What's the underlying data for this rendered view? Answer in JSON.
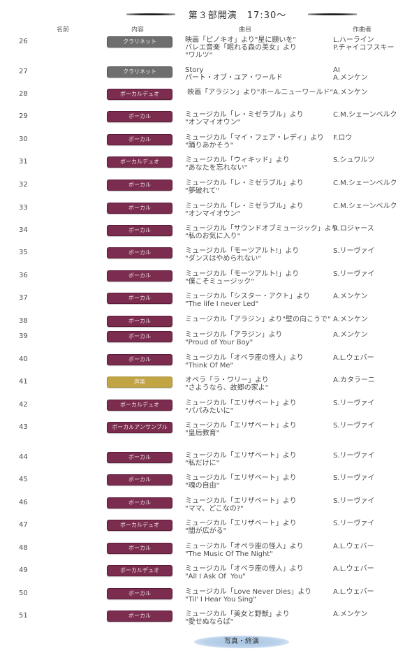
{
  "title": "第３部開演　17:30〜",
  "headers": {
    "name": "名前",
    "content": "内容",
    "song": "曲目",
    "composer": "作曲者"
  },
  "colors": {
    "vocal": "#7b2c4f",
    "clarinet": "#6e6e6e",
    "vocal_music": "#c1a545",
    "finale": "#b9d1ea"
  },
  "rows": [
    {
      "no": "26",
      "type": "クラリネット",
      "kind": "clar",
      "song": "映画「ピノキオ」より\"星に願いを\"\nバレエ音楽「眠れる森の美女」より\n\"ワルツ\"",
      "composer": "L.ハーライン\nP.チャイコフスキー"
    },
    {
      "no": "27",
      "type": "クラリネット",
      "kind": "clar",
      "song": "Story\nパート・オブ・ユア・ワールド",
      "composer": "AI\nA.メンケン"
    },
    {
      "no": "28",
      "type": "ボーカルデュオ",
      "kind": "vocal",
      "song": " 映画「アラジン」より\"ホールニューワールド\"",
      "composer": "A.メンケン"
    },
    {
      "no": "29",
      "type": "ボーカル",
      "kind": "vocal",
      "song": "ミュージカル「レ・ミゼラブル」より\n\"オンマイオウン\"",
      "composer": "C.M.シェーンベルク"
    },
    {
      "no": "30",
      "type": "ボーカル",
      "kind": "vocal",
      "song": "ミュージカル「マイ・フェア・レディ」より\n\"踊りあかそう\"",
      "composer": "F.ロウ"
    },
    {
      "no": "31",
      "type": "ボーカルデュオ",
      "kind": "vocal",
      "song": "ミュージカル「ウィキッド」より\n\"あなたを忘れない\"",
      "composer": "S.シュワルツ"
    },
    {
      "no": "32",
      "type": "ボーカル",
      "kind": "vocal",
      "song": "ミュージカル「レ・ミゼラブル」より\n\"夢破れて\"",
      "composer": "C.M.シェーンベルク"
    },
    {
      "no": "33",
      "type": "ボーカル",
      "kind": "vocal",
      "song": "ミュージカル「レ・ミゼラブル」より\n\"オンマイオウン\"",
      "composer": "C.M.シェーンベルク"
    },
    {
      "no": "34",
      "type": "ボーカル",
      "kind": "vocal",
      "song": "ミュージカル「サウンドオブミュージック」より\n\"私のお気に入り\"",
      "composer": "R.ロジャース"
    },
    {
      "no": "35",
      "type": "ボーカル",
      "kind": "vocal",
      "song": "ミュージカル「モーツアルト!」より\n\"ダンスはやめられない\"",
      "composer": "S.リーヴァイ"
    },
    {
      "no": "36",
      "type": "ボーカル",
      "kind": "vocal",
      "song": "ミュージカル「モーツアルト!」より\n\"僕こそミュージック\"",
      "composer": "S.リーヴァイ"
    },
    {
      "no": "37",
      "type": "ボーカル",
      "kind": "vocal",
      "song": "ミュージカル「シスター・アクト」より\n\"The life I never Led\"",
      "composer": "A.メンケン"
    },
    {
      "no": "38",
      "type": "ボーカル",
      "kind": "vocal",
      "song": "ミュージカル「アラジン」より\"壁の向こうで\"",
      "composer": "A.メンケン"
    },
    {
      "no": "39",
      "type": "ボーカル",
      "kind": "vocal",
      "song": "ミュージカル「アラジン」より\n\"Proud of Your Boy\"",
      "composer": "A.メンケン"
    },
    {
      "no": "40",
      "type": "ボーカル",
      "kind": "vocal",
      "song": "ミュージカル「オペラ座の怪人」より\n\"Think Of Me\"",
      "composer": "A.L.ウェバー"
    },
    {
      "no": "41",
      "type": "声楽",
      "kind": "gold",
      "song": "オペラ「ラ・ワリー」より\n\"さようなら、故郷の家よ\"",
      "composer": "A.カタラーニ"
    },
    {
      "no": "42",
      "type": "ボーカルデュオ",
      "kind": "vocal",
      "song": "ミュージカル「エリザベート」より\n\"パパみたいに\"",
      "composer": "S.リーヴァイ"
    },
    {
      "no": "43",
      "type": "ボーカルアンサンブル",
      "kind": "vocal",
      "song": "ミュージカル「エリザベート」より\n\"皇后教育\"",
      "composer": "S.リーヴァイ"
    },
    {
      "no": "44",
      "type": "ボーカル",
      "kind": "vocal",
      "song": "ミュージカル「エリザベート」より\n\"私だけに\"",
      "composer": "S.リーヴァイ"
    },
    {
      "no": "45",
      "type": "ボーカル",
      "kind": "vocal",
      "song": "ミュージカル「エリザベート」より\n\"魂の自由\"",
      "composer": "S.リーヴァイ"
    },
    {
      "no": "46",
      "type": "ボーカル",
      "kind": "vocal",
      "song": "ミュージカル「エリザベート」より\n\"ママ、どこなの?\"",
      "composer": "S.リーヴァイ"
    },
    {
      "no": "47",
      "type": "ボーカルデュオ",
      "kind": "vocal",
      "song": "ミュージカル「エリザベート」より\n\"闇が広がる\"",
      "composer": "S.リーヴァイ"
    },
    {
      "no": "48",
      "type": "ボーカル",
      "kind": "vocal",
      "song": "ミュージカル「オペラ座の怪人」より\n\"The Music Of The Night\"",
      "composer": "A.L.ウェバー"
    },
    {
      "no": "49",
      "type": "ボーカルデュオ",
      "kind": "vocal",
      "song": "ミュージカル「オペラ座の怪人」より\n\"All I Ask Of  You\"",
      "composer": "A.L.ウェバー"
    },
    {
      "no": "50",
      "type": "ボーカル",
      "kind": "vocal",
      "song": "ミュージカル「Love Never Dies」より\n\"Til' I Hear You Sing\"",
      "composer": "A.L.ウェバー"
    },
    {
      "no": "51",
      "type": "ボーカル",
      "kind": "vocal",
      "song": "ミュージカル「美女と野獣」より\n\"愛せぬならば\"",
      "composer": "A.メンケン"
    }
  ],
  "finale": "写真・終演"
}
